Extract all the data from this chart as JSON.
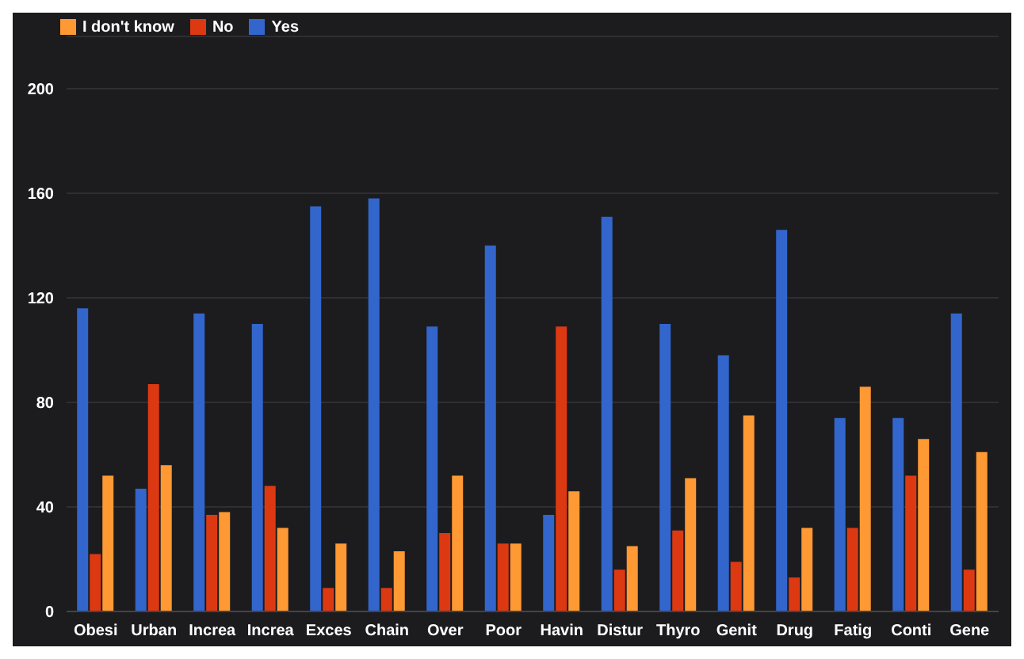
{
  "chart_data": {
    "type": "bar",
    "categories": [
      "Obesi",
      "Urban",
      "Increa",
      "Increa",
      "Exces",
      "Chain",
      "Over",
      "Poor",
      "Havin",
      "Distur",
      "Thyro",
      "Genit",
      "Drug",
      "Fatig",
      "Conti",
      "Gene"
    ],
    "series": [
      {
        "name": "Yes",
        "color": "#3366cc",
        "values": [
          116,
          47,
          114,
          110,
          155,
          158,
          109,
          140,
          37,
          151,
          110,
          98,
          146,
          74,
          74,
          114
        ]
      },
      {
        "name": "No",
        "color": "#dc3912",
        "values": [
          22,
          87,
          37,
          48,
          9,
          9,
          30,
          26,
          109,
          16,
          31,
          19,
          13,
          32,
          52,
          16
        ]
      },
      {
        "name": "I don't know",
        "color": "#ff9933",
        "values": [
          52,
          56,
          38,
          32,
          26,
          23,
          52,
          26,
          46,
          25,
          51,
          75,
          32,
          86,
          66,
          61
        ]
      }
    ],
    "ylim": [
      0,
      220
    ],
    "yticks": [
      0,
      40,
      80,
      120,
      160,
      200
    ],
    "grid": "y",
    "legend": "top left"
  }
}
